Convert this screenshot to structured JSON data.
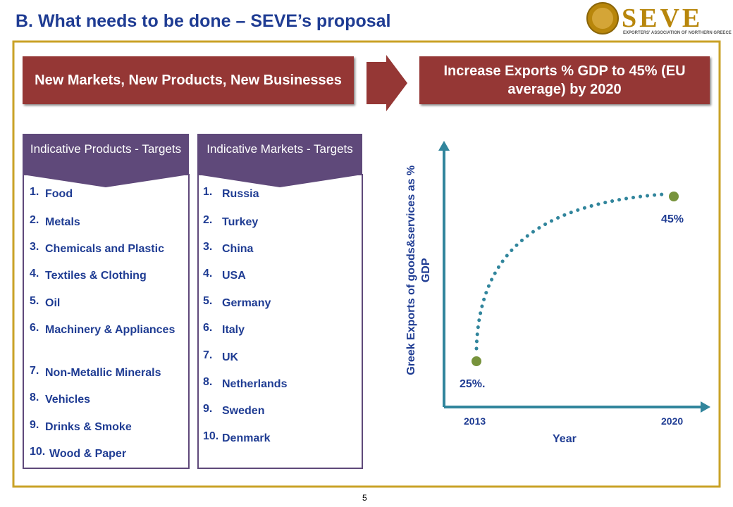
{
  "header": {
    "title": "B. What needs to be done – SEVE’s proposal",
    "logo": {
      "name": "SEVE",
      "tagline": "EXPORTERS' ASSOCIATION OF NORTHERN GREECE"
    }
  },
  "banner": {
    "left": "New Markets, New Products, New Businesses",
    "right": "Increase Exports % GDP to 45% (EU average) by 2020"
  },
  "lists": [
    {
      "heading": "Indicative Products - Targets",
      "items": [
        {
          "num": "1.",
          "text": "Food"
        },
        {
          "num": "2.",
          "text": "Metals"
        },
        {
          "num": "3.",
          "text": "Chemicals and Plastic"
        },
        {
          "num": "4.",
          "text": "Textiles & Clothing"
        },
        {
          "num": "5.",
          "text": "Oil"
        },
        {
          "num": "6.",
          "text": "Machinery & Appliances"
        },
        {
          "num": "7.",
          "text": "Non-Metallic Minerals"
        },
        {
          "num": "8.",
          "text": "Vehicles"
        },
        {
          "num": "9.",
          "text": "Drinks & Smoke"
        },
        {
          "num": "10.",
          "text": "Wood & Paper"
        }
      ]
    },
    {
      "heading": "Indicative Markets - Targets",
      "items": [
        {
          "num": "1.",
          "text": "Russia"
        },
        {
          "num": "2.",
          "text": "Turkey"
        },
        {
          "num": "3.",
          "text": "China"
        },
        {
          "num": "4.",
          "text": "USA"
        },
        {
          "num": "5.",
          "text": "Germany"
        },
        {
          "num": "6.",
          "text": "Italy"
        },
        {
          "num": "7.",
          "text": "UK"
        },
        {
          "num": "8.",
          "text": "Netherlands"
        },
        {
          "num": "9.",
          "text": "Sweden"
        },
        {
          "num": "10.",
          "text": "Denmark"
        }
      ]
    }
  ],
  "diagram": {
    "y_label": "Greek Exports of goods&services as % GDP",
    "x_label": "Year",
    "start": {
      "year": "2013",
      "label": "25%."
    },
    "end": {
      "year": "2020",
      "label": "45%"
    }
  },
  "footer": {
    "page": "5"
  }
}
